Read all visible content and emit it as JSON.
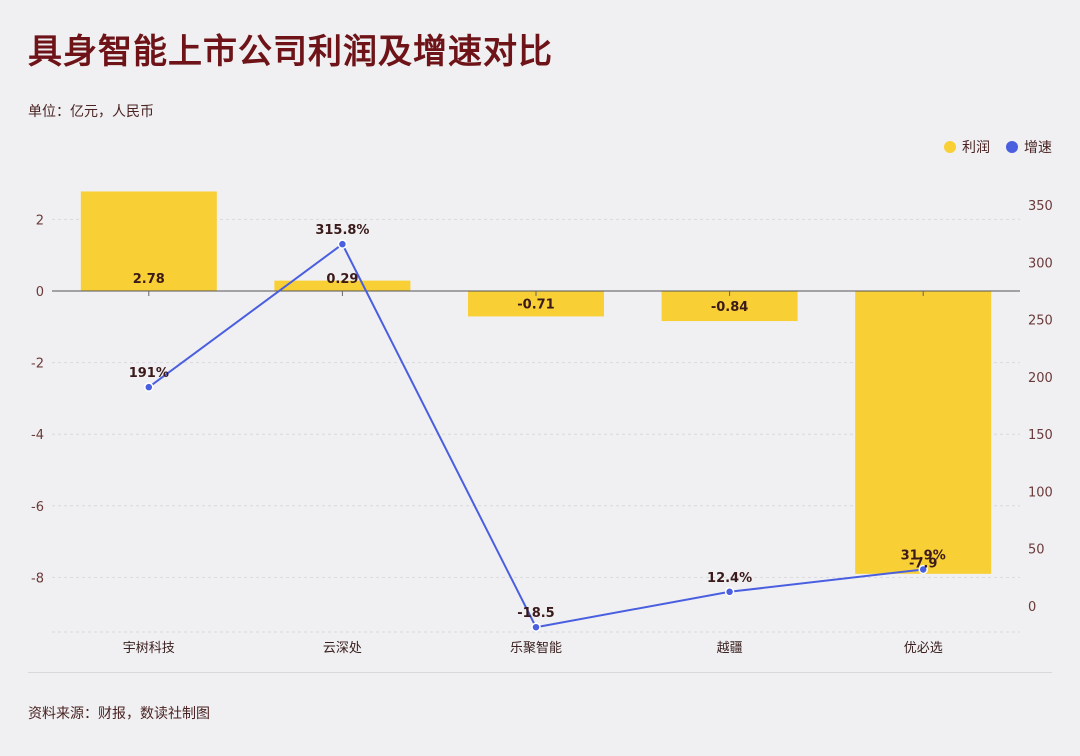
{
  "title": "具身智能上市公司利润及增速对比",
  "subtitle": "单位：亿元，人民币",
  "source": "资料来源：财报，数读社制图",
  "legend": [
    {
      "label": "利润",
      "color": "#f8cf35"
    },
    {
      "label": "增速",
      "color": "#4a5fe0"
    }
  ],
  "chart_data": {
    "type": "bar",
    "categories": [
      "宇树科技",
      "云深处",
      "乐聚智能",
      "越疆",
      "优必选"
    ],
    "series": [
      {
        "name": "利润",
        "type": "bar",
        "axis": "left",
        "values": [
          2.78,
          0.29,
          -0.71,
          -0.84,
          -7.9
        ],
        "labels": [
          "2.78",
          "0.29",
          "-0.71",
          "-0.84",
          "-7.9"
        ]
      },
      {
        "name": "增速",
        "type": "line",
        "axis": "right",
        "values": [
          191,
          315.8,
          -18.5,
          12.4,
          31.9
        ],
        "labels": [
          "191%",
          "315.8%",
          "-18.5",
          "12.4%",
          "31.9%"
        ]
      }
    ],
    "y_left": {
      "min": -9.5,
      "max": 3,
      "ticks": [
        2,
        0,
        -2,
        -4,
        -6,
        -8
      ]
    },
    "y_right": {
      "min": -20,
      "max": 350,
      "ticks": [
        350,
        300,
        250,
        200,
        150,
        100,
        50,
        0
      ]
    },
    "colors": {
      "bar": "#f8cf35",
      "line": "#4a5fe0",
      "axis_text": "#6b3a3a"
    },
    "grid": true,
    "legend_position": "top-right"
  }
}
